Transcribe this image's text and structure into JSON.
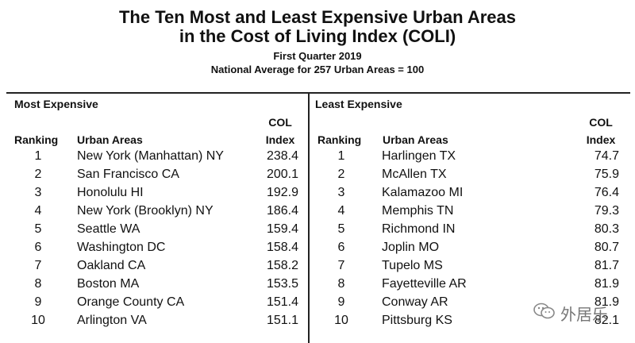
{
  "header": {
    "title_line1": "The Ten Most and Least Expensive Urban Areas",
    "title_line2": "in the Cost of Living Index (COLI)",
    "subtitle_line1": "First Quarter 2019",
    "subtitle_line2": "National Average for 257 Urban Areas = 100"
  },
  "most_expensive": {
    "title": "Most Expensive",
    "col_ranking": "Ranking",
    "col_area": "Urban Areas",
    "col_index_line1": "COL",
    "col_index_line2": "Index",
    "rows": [
      {
        "rank": "1",
        "area": "New York (Manhattan) NY",
        "index": "238.4"
      },
      {
        "rank": "2",
        "area": "San Francisco CA",
        "index": "200.1"
      },
      {
        "rank": "3",
        "area": "Honolulu HI",
        "index": "192.9"
      },
      {
        "rank": "4",
        "area": "New York (Brooklyn) NY",
        "index": "186.4"
      },
      {
        "rank": "5",
        "area": "Seattle WA",
        "index": "159.4"
      },
      {
        "rank": "6",
        "area": "Washington DC",
        "index": "158.4"
      },
      {
        "rank": "7",
        "area": "Oakland CA",
        "index": "158.2"
      },
      {
        "rank": "8",
        "area": "Boston MA",
        "index": "153.5"
      },
      {
        "rank": "9",
        "area": "Orange County CA",
        "index": "151.4"
      },
      {
        "rank": "10",
        "area": "Arlington VA",
        "index": "151.1"
      }
    ]
  },
  "least_expensive": {
    "title": "Least Expensive",
    "col_ranking": "Ranking",
    "col_area": "Urban Areas",
    "col_index_line1": "COL",
    "col_index_line2": "Index",
    "rows": [
      {
        "rank": "1",
        "area": "Harlingen TX",
        "index": "74.7"
      },
      {
        "rank": "2",
        "area": "McAllen TX",
        "index": "75.9"
      },
      {
        "rank": "3",
        "area": "Kalamazoo MI",
        "index": "76.4"
      },
      {
        "rank": "4",
        "area": "Memphis TN",
        "index": "79.3"
      },
      {
        "rank": "5",
        "area": "Richmond IN",
        "index": "80.3"
      },
      {
        "rank": "6",
        "area": "Joplin MO",
        "index": "80.7"
      },
      {
        "rank": "7",
        "area": "Tupelo MS",
        "index": "81.7"
      },
      {
        "rank": "8",
        "area": "Fayetteville AR",
        "index": "81.9"
      },
      {
        "rank": "9",
        "area": "Conway AR",
        "index": "81.9"
      },
      {
        "rank": "10",
        "area": "Pittsburg KS",
        "index": "82.1"
      }
    ]
  },
  "watermark": {
    "text": "外居乐",
    "icon": "wechat-icon"
  }
}
